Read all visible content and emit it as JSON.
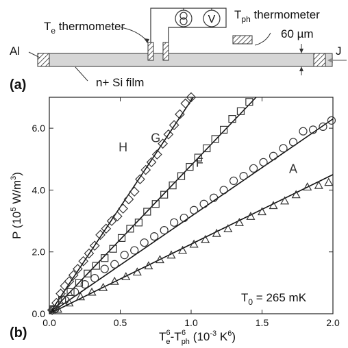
{
  "schematic": {
    "panel_label": "(a)",
    "al_label": "Al",
    "j_label": "J",
    "film_label": "n+ Si film",
    "te_thermo": {
      "main": "T",
      "sub": "e",
      "rest": " thermometer"
    },
    "tph_thermo": {
      "main": "T",
      "sub": "ph",
      "rest": " thermometer"
    },
    "thickness_label": "60 µm",
    "voltmeter_label": "V"
  },
  "chart_data": {
    "type": "scatter",
    "panel_label": "(b)",
    "xlabel": {
      "a": "T",
      "a_sub": "e",
      "a_sup": "6",
      "b": "-T",
      "b_sub": "ph",
      "b_sup": "6",
      "c": " (10",
      "c_sup": "-3",
      "d": " K",
      "d_sup": "6",
      "e": ")"
    },
    "ylabel": {
      "a": "P (10",
      "a_sup": "5",
      "b": " W/m",
      "b_sup": "3",
      "c": ")"
    },
    "xlim": [
      0,
      2.0
    ],
    "ylim": [
      0,
      7.0
    ],
    "xticks": [
      "0.0",
      "0.5",
      "1.0",
      "1.5",
      "2.0"
    ],
    "yticks": [
      "0.0",
      "2.0",
      "4.0",
      "6.0"
    ],
    "annotation": {
      "main": "T",
      "sub": "0",
      "rest": " = 265 mK"
    },
    "series": [
      {
        "name": "H",
        "marker": "diamond",
        "x": [
          0.02,
          0.05,
          0.08,
          0.11,
          0.14,
          0.17,
          0.2,
          0.24,
          0.28,
          0.32,
          0.36,
          0.4,
          0.44,
          0.48,
          0.52,
          0.56,
          0.6,
          0.64,
          0.68,
          0.72,
          0.76,
          0.8,
          0.84,
          0.88,
          0.92,
          0.96,
          1.0
        ],
        "y": [
          0.12,
          0.35,
          0.65,
          0.9,
          1.05,
          1.25,
          1.45,
          1.7,
          1.95,
          2.2,
          2.55,
          2.75,
          3.0,
          3.15,
          3.4,
          3.7,
          3.95,
          4.35,
          4.65,
          4.9,
          5.15,
          5.5,
          5.8,
          6.1,
          6.45,
          6.8,
          7.0
        ],
        "fit_slope": 6.9
      },
      {
        "name": "G",
        "marker": "square",
        "x": [
          0.03,
          0.09,
          0.15,
          0.21,
          0.27,
          0.33,
          0.39,
          0.45,
          0.51,
          0.57,
          0.63,
          0.69,
          0.75,
          0.81,
          0.87,
          0.93,
          0.99,
          1.05,
          1.11,
          1.17,
          1.23,
          1.29,
          1.35,
          1.41
        ],
        "y": [
          0.15,
          0.45,
          0.7,
          1.0,
          1.3,
          1.55,
          1.8,
          2.1,
          2.45,
          2.75,
          2.95,
          3.3,
          3.55,
          3.85,
          4.15,
          4.45,
          4.75,
          5.05,
          5.35,
          5.65,
          5.95,
          6.3,
          6.55,
          6.85
        ],
        "fit_slope": 4.8
      },
      {
        "name": "F",
        "marker": "circle",
        "x": [
          0.04,
          0.11,
          0.18,
          0.25,
          0.32,
          0.39,
          0.46,
          0.53,
          0.6,
          0.67,
          0.74,
          0.81,
          0.88,
          0.95,
          1.02,
          1.09,
          1.16,
          1.23,
          1.3,
          1.37,
          1.44,
          1.51,
          1.58,
          1.65,
          1.72,
          1.79,
          1.86,
          1.93,
          1.99
        ],
        "y": [
          0.15,
          0.45,
          0.7,
          0.95,
          1.15,
          1.45,
          1.6,
          1.9,
          2.05,
          2.3,
          2.5,
          2.7,
          2.95,
          3.1,
          3.35,
          3.55,
          3.75,
          4.0,
          4.3,
          4.45,
          4.7,
          4.9,
          5.1,
          5.35,
          5.55,
          5.9,
          5.95,
          6.05,
          6.25
        ],
        "fit_slope": 3.15
      },
      {
        "name": "A",
        "marker": "triangle",
        "x": [
          0.06,
          0.14,
          0.22,
          0.3,
          0.38,
          0.46,
          0.54,
          0.62,
          0.7,
          0.78,
          0.86,
          0.94,
          1.02,
          1.1,
          1.18,
          1.26,
          1.34,
          1.42,
          1.5,
          1.58,
          1.66,
          1.74,
          1.82,
          1.9,
          1.97
        ],
        "y": [
          0.15,
          0.35,
          0.55,
          0.7,
          0.85,
          1.05,
          1.2,
          1.35,
          1.55,
          1.75,
          1.9,
          2.05,
          2.25,
          2.4,
          2.6,
          2.75,
          2.95,
          3.15,
          3.3,
          3.5,
          3.65,
          3.85,
          4.1,
          4.15,
          4.25
        ],
        "fit_slope": 2.25
      }
    ]
  }
}
